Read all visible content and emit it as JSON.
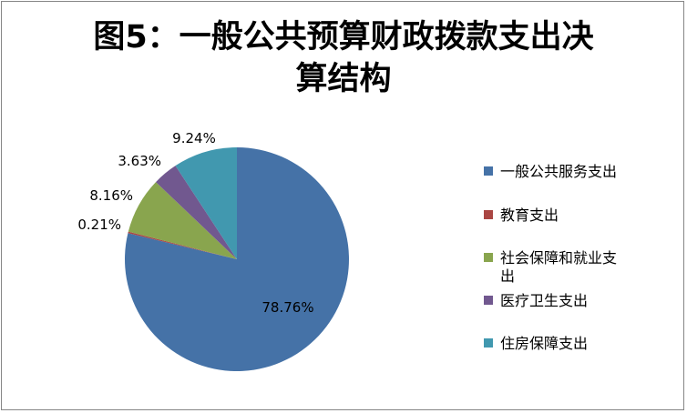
{
  "chart_data": {
    "type": "pie",
    "title_lines": [
      "图5：一般公共预算财政拨款支出决",
      "算结构"
    ],
    "categories": [
      "一般公共服务支出",
      "教育支出",
      "社会保障和就业支出",
      "医疗卫生支出",
      "住房保障支出"
    ],
    "values": [
      78.76,
      0.21,
      8.16,
      3.63,
      9.24
    ],
    "data_labels": [
      "78.76%",
      "0.21%",
      "8.16%",
      "3.63%",
      "9.24%"
    ],
    "colors": [
      "#4572A7",
      "#AA4643",
      "#89A54E",
      "#71588F",
      "#4198AF"
    ],
    "legend_lines": [
      [
        "一般公共服务支出"
      ],
      [
        "教育支出"
      ],
      [
        "社会保障和就业支",
        "出"
      ],
      [
        "医疗卫生支出"
      ],
      [
        "住房保障支出"
      ]
    ],
    "legend_position": "right",
    "start_angle": "12 o'clock",
    "direction": "clockwise"
  }
}
